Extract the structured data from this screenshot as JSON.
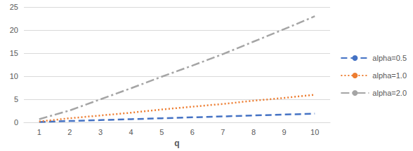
{
  "chart_data": {
    "type": "line",
    "x_label": "q",
    "categories": [
      "1",
      "2",
      "3",
      "4",
      "5",
      "6",
      "7",
      "8",
      "9",
      "10"
    ],
    "series": [
      {
        "name": "alpha=0.5",
        "color": "#4472c4",
        "line_style": "dashed",
        "values": [
          0.1,
          0.3,
          0.5,
          0.7,
          0.9,
          1.1,
          1.3,
          1.5,
          1.7,
          1.9
        ]
      },
      {
        "name": "alpha=1.0",
        "color": "#ed7d31",
        "line_style": "dotted",
        "values": [
          0.2,
          0.9,
          1.5,
          2.1,
          2.8,
          3.4,
          4.0,
          4.7,
          5.3,
          6.0
        ]
      },
      {
        "name": "alpha=2.0",
        "color": "#a5a5a5",
        "line_style": "dashdot",
        "values": [
          0.7,
          2.6,
          5.0,
          7.4,
          9.9,
          12.3,
          14.8,
          17.5,
          20.2,
          23.0
        ]
      }
    ],
    "ylim": [
      0,
      25
    ],
    "yticks": [
      0,
      5,
      10,
      15,
      20,
      25
    ],
    "grid": true,
    "legend": "right"
  }
}
